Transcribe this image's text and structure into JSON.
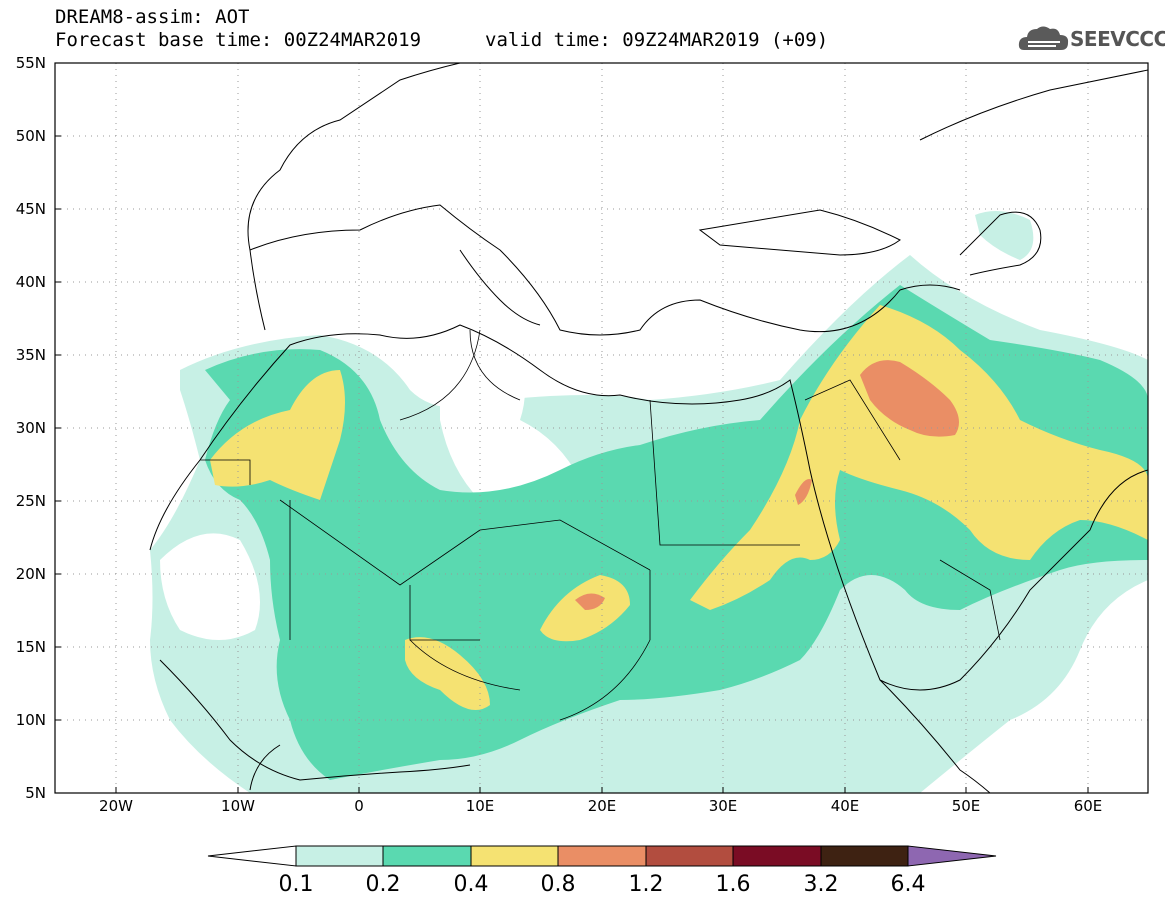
{
  "header": {
    "line1": "DREAM8-assim: AOT",
    "line2": "Forecast base time: 00Z24MAR2019",
    "valid": "valid time: 09Z24MAR2019 (+09)"
  },
  "logo": {
    "text": "SEEVCCC",
    "icon": "cloud-icon"
  },
  "map": {
    "lon_range": [
      -25,
      65
    ],
    "lat_range": [
      5,
      55
    ],
    "lat_labels": [
      "55N",
      "50N",
      "45N",
      "40N",
      "35N",
      "30N",
      "25N",
      "20N",
      "15N",
      "10N",
      "5N"
    ],
    "lon_labels": [
      "20W",
      "10W",
      "0",
      "10E",
      "20E",
      "30E",
      "40E",
      "50E",
      "60E"
    ],
    "gridlines": "dotted"
  },
  "colorbar": {
    "labels": [
      "0.1",
      "0.2",
      "0.4",
      "0.8",
      "1.2",
      "1.6",
      "3.2",
      "6.4"
    ],
    "colors": [
      "#c7f0e5",
      "#5ad9b0",
      "#f5e272",
      "#ea8e65",
      "#b24d3f",
      "#7a0c24",
      "#3e2212",
      "#8e67b1"
    ],
    "low_end_color": "#ffffff"
  }
}
